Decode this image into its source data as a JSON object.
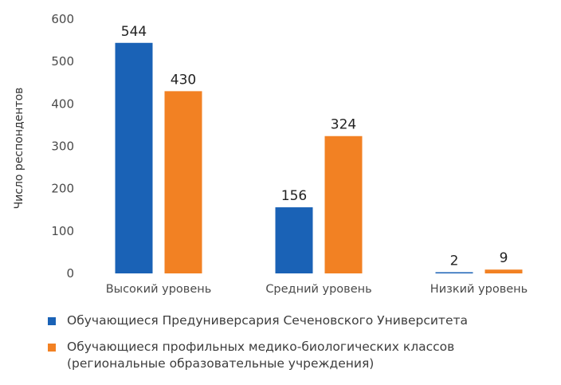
{
  "chart_data": {
    "type": "bar",
    "ylabel": "Число респондентов",
    "xlabel": "",
    "ylim": [
      0,
      600
    ],
    "yticks": [
      0,
      100,
      200,
      300,
      400,
      500,
      600
    ],
    "grid": false,
    "legend_position": "bottom",
    "categories": [
      "Высокий уровень",
      "Средний уровень",
      "Низкий уровень"
    ],
    "series": [
      {
        "name": "Обучающиеся Предуниверсария Сеченовского Университета",
        "color": "#1a62b6",
        "values": [
          544,
          156,
          2
        ]
      },
      {
        "name_lines": [
          "Обучающиеся профильных медико-биологических классов",
          "(региональные образовательные учреждения)"
        ],
        "color": "#f28123",
        "values": [
          430,
          324,
          9
        ]
      }
    ]
  }
}
